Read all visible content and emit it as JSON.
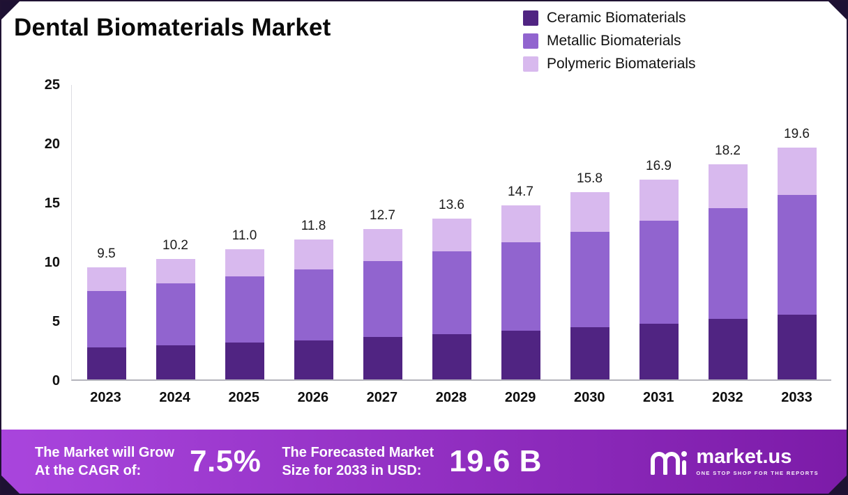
{
  "meta": {
    "title": "Dental Biomaterials Market"
  },
  "legend": [
    {
      "label": "Ceramic Biomaterials",
      "color": "#502482"
    },
    {
      "label": "Metallic Biomaterials",
      "color": "#9164cf"
    },
    {
      "label": "Polymeric Biomaterials",
      "color": "#d8b9ee"
    }
  ],
  "chart_data": {
    "type": "bar",
    "stacked": true,
    "title": "Dental Biomaterials Market",
    "categories": [
      "2023",
      "2024",
      "2025",
      "2026",
      "2027",
      "2028",
      "2029",
      "2030",
      "2031",
      "2032",
      "2033"
    ],
    "series": [
      {
        "name": "Ceramic Biomaterials",
        "color": "#502482",
        "values": [
          2.7,
          2.9,
          3.1,
          3.3,
          3.6,
          3.8,
          4.1,
          4.4,
          4.7,
          5.1,
          5.5
        ]
      },
      {
        "name": "Metallic Biomaterials",
        "color": "#9164cf",
        "values": [
          4.8,
          5.2,
          5.6,
          6.0,
          6.4,
          7.0,
          7.5,
          8.1,
          8.7,
          9.4,
          10.1
        ]
      },
      {
        "name": "Polymeric Biomaterials",
        "color": "#d8b9ee",
        "values": [
          2.0,
          2.1,
          2.3,
          2.5,
          2.7,
          2.8,
          3.1,
          3.3,
          3.5,
          3.7,
          4.0
        ]
      }
    ],
    "totals": [
      9.5,
      10.2,
      11.0,
      11.8,
      12.7,
      13.6,
      14.7,
      15.8,
      16.9,
      18.2,
      19.6
    ],
    "total_labels": [
      "9.5",
      "10.2",
      "11.0",
      "11.8",
      "12.7",
      "13.6",
      "14.7",
      "15.8",
      "16.9",
      "18.2",
      "19.6"
    ],
    "ylim": [
      0,
      25
    ],
    "yticks": [
      0,
      5,
      10,
      15,
      20,
      25
    ],
    "grid": false,
    "legend_position": "top-right"
  },
  "footer": {
    "cagr_label_line1": "The Market will Grow",
    "cagr_label_line2": "At the CAGR of:",
    "cagr_value": "7.5%",
    "forecast_label_line1": "The Forecasted Market",
    "forecast_label_line2": "Size for 2033 in USD:",
    "forecast_value": "19.6 B",
    "brand": "market.us",
    "brand_tagline": "One Stop Shop For The Reports",
    "banner_gradient": [
      "#a945dd",
      "#7c1ba8"
    ]
  }
}
